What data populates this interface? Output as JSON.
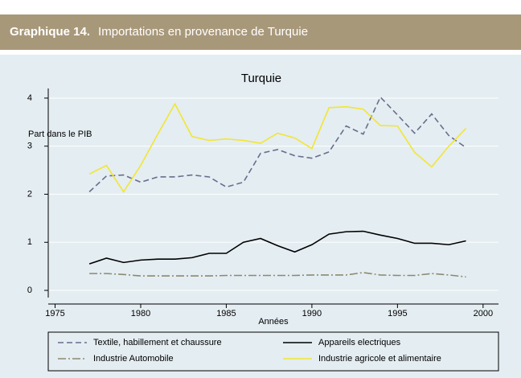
{
  "header": {
    "label": "Graphique 14.",
    "title": "Importations en provenance de Turquie"
  },
  "chart_data": {
    "type": "line",
    "title": "Turquie",
    "xlabel": "Années",
    "ylabel": "Part dans le PIB",
    "x": [
      1977,
      1978,
      1979,
      1980,
      1981,
      1982,
      1983,
      1984,
      1985,
      1986,
      1987,
      1988,
      1989,
      1990,
      1991,
      1992,
      1993,
      1994,
      1995,
      1996,
      1997,
      1998,
      1999
    ],
    "series": [
      {
        "name": "Textile, habillement et chaussure",
        "color": "#6b6d8c",
        "dash": "dashed",
        "values": [
          2.05,
          2.38,
          2.4,
          2.25,
          2.36,
          2.36,
          2.4,
          2.36,
          2.15,
          2.25,
          2.85,
          2.93,
          2.8,
          2.75,
          2.88,
          3.42,
          3.25,
          4.02,
          3.65,
          3.27,
          3.67,
          3.22,
          2.97
        ]
      },
      {
        "name": "Appareils electriques",
        "color": "#000000",
        "dash": "solid",
        "values": [
          0.55,
          0.67,
          0.58,
          0.63,
          0.65,
          0.65,
          0.68,
          0.77,
          0.77,
          1.0,
          1.08,
          0.93,
          0.8,
          0.95,
          1.17,
          1.22,
          1.23,
          1.15,
          1.08,
          0.98,
          0.98,
          0.95,
          1.03
        ]
      },
      {
        "name": "Industrie Automobile",
        "color": "#8c8a70",
        "dash": "dashdot",
        "values": [
          0.35,
          0.35,
          0.33,
          0.3,
          0.3,
          0.3,
          0.3,
          0.3,
          0.31,
          0.31,
          0.31,
          0.31,
          0.31,
          0.32,
          0.32,
          0.32,
          0.37,
          0.32,
          0.31,
          0.31,
          0.35,
          0.32,
          0.28
        ]
      },
      {
        "name": "Industrie agricole et alimentaire",
        "color": "#f2e630",
        "dash": "solid",
        "values": [
          2.42,
          2.6,
          2.05,
          2.6,
          3.25,
          3.88,
          3.2,
          3.12,
          3.15,
          3.12,
          3.06,
          3.27,
          3.17,
          2.95,
          3.8,
          3.82,
          3.77,
          3.43,
          3.42,
          2.87,
          2.57,
          3.0,
          3.37
        ]
      }
    ],
    "xlim": [
      1974.6,
      2000.9
    ],
    "xticks": [
      1975,
      1980,
      1985,
      1990,
      1995,
      2000
    ],
    "ylim": [
      -0.15,
      4.2
    ],
    "yticks": [
      0,
      1,
      2,
      3,
      4
    ],
    "grid": true
  }
}
